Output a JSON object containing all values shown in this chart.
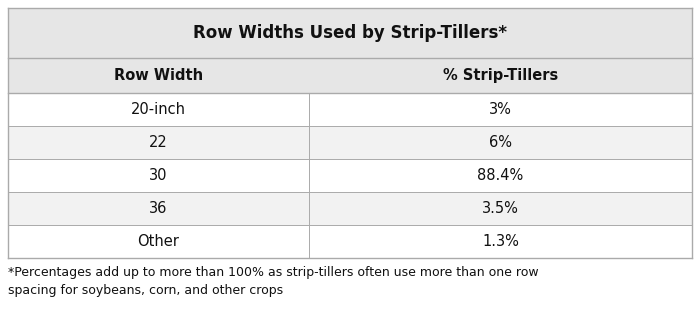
{
  "title": "Row Widths Used by Strip-Tillers*",
  "col_headers": [
    "Row Width",
    "% Strip-Tillers"
  ],
  "rows": [
    [
      "20-inch",
      "3%"
    ],
    [
      "22",
      "6%"
    ],
    [
      "30",
      "88.4%"
    ],
    [
      "36",
      "3.5%"
    ],
    [
      "Other",
      "1.3%"
    ]
  ],
  "footnote_line1": "*Percentages add up to more than 100% as strip-tillers often use more than one row",
  "footnote_line2": "spacing for soybeans, corn, and other crops",
  "title_bg": "#e6e6e6",
  "header_bg": "#e6e6e6",
  "row_bg_white": "#ffffff",
  "row_bg_gray": "#f2f2f2",
  "border_color": "#aaaaaa",
  "title_fontsize": 12,
  "header_fontsize": 10.5,
  "cell_fontsize": 10.5,
  "footnote_fontsize": 9,
  "col_split": 0.44
}
